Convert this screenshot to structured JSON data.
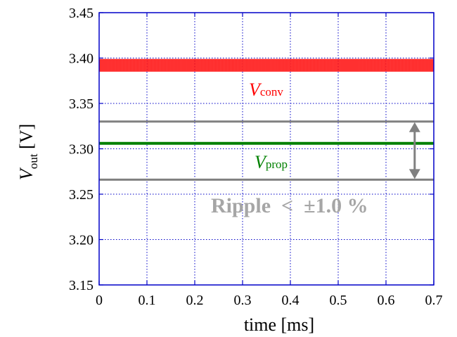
{
  "chart_data": {
    "type": "line",
    "xlabel": "time [ms]",
    "ylabel_main": "V",
    "ylabel_sub": "out",
    "ylabel_unit": " [V]",
    "xlim": [
      0,
      0.7
    ],
    "ylim": [
      3.15,
      3.45
    ],
    "x_ticks": [
      "0",
      "0.1",
      "0.2",
      "0.3",
      "0.4",
      "0.5",
      "0.6",
      "0.7"
    ],
    "y_ticks": [
      "3.15",
      "3.20",
      "3.25",
      "3.30",
      "3.35",
      "3.40",
      "3.45"
    ],
    "grid": true,
    "series": [
      {
        "name": "V_conv",
        "label_main": "V",
        "label_sub": "conv",
        "color": "#ff0000",
        "style": "ripple band",
        "x": [
          0,
          0.7
        ],
        "y": [
          3.392,
          3.392
        ],
        "y_min": 3.385,
        "y_max": 3.399
      },
      {
        "name": "V_prop",
        "label_main": "V",
        "label_sub": "prop",
        "color": "#008000",
        "style": "line",
        "x": [
          0,
          0.7
        ],
        "y": [
          3.306,
          3.306
        ]
      }
    ],
    "reference_lines": [
      {
        "y": 3.33,
        "color": "#808080"
      },
      {
        "y": 3.266,
        "color": "#808080"
      }
    ],
    "annotation": {
      "ripple_text": "Ripple  <  ±1.0 %",
      "arrow_x": 0.66,
      "arrow_from": 3.33,
      "arrow_to": 3.266,
      "color": "#808080"
    }
  }
}
